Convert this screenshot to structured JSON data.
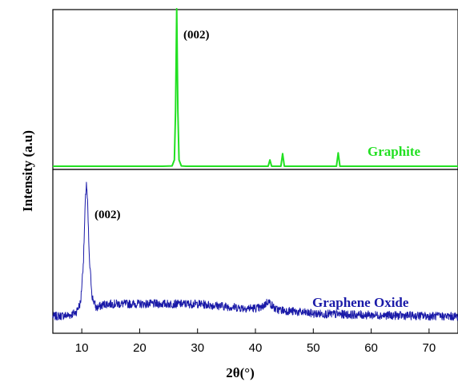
{
  "chart_data": [
    {
      "type": "line",
      "panel": "top",
      "series": [
        {
          "name": "Graphite",
          "color": "#22e022",
          "points": [
            [
              5,
              0
            ],
            [
              24,
              0
            ],
            [
              25.6,
              0.002
            ],
            [
              26.0,
              0.04
            ],
            [
              26.2,
              0.35
            ],
            [
              26.4,
              1.0
            ],
            [
              26.6,
              0.35
            ],
            [
              26.8,
              0.04
            ],
            [
              27.2,
              0.002
            ],
            [
              28,
              0
            ],
            [
              42.2,
              0
            ],
            [
              42.5,
              0.04
            ],
            [
              42.8,
              0
            ],
            [
              44.4,
              0
            ],
            [
              44.7,
              0.08
            ],
            [
              45.0,
              0
            ],
            [
              54.0,
              0
            ],
            [
              54.3,
              0.085
            ],
            [
              54.6,
              0
            ],
            [
              75,
              0
            ]
          ]
        }
      ],
      "annotations": [
        {
          "text": "(002)",
          "x": 26.4
        }
      ]
    },
    {
      "type": "line",
      "panel": "bottom",
      "series": [
        {
          "name": "Graphene Oxide",
          "color": "#1a1aa8",
          "points": [
            [
              5,
              0.04
            ],
            [
              8,
              0.05
            ],
            [
              9,
              0.07
            ],
            [
              9.8,
              0.14
            ],
            [
              10.3,
              0.45
            ],
            [
              10.6,
              0.85
            ],
            [
              10.8,
              1.0
            ],
            [
              11.0,
              0.85
            ],
            [
              11.3,
              0.45
            ],
            [
              11.8,
              0.18
            ],
            [
              12.5,
              0.1
            ],
            [
              14,
              0.13
            ],
            [
              20,
              0.13
            ],
            [
              30,
              0.13
            ],
            [
              38,
              0.1
            ],
            [
              41,
              0.1
            ],
            [
              42.2,
              0.15
            ],
            [
              43.5,
              0.09
            ],
            [
              50,
              0.06
            ],
            [
              60,
              0.05
            ],
            [
              75,
              0.04
            ]
          ]
        }
      ],
      "annotations": [
        {
          "text": "(002)",
          "x": 10.8
        }
      ]
    }
  ],
  "axes": {
    "xlabel": "2θ(°)",
    "ylabel": "Intensity (a.u)",
    "xlim": [
      5,
      75
    ],
    "xticks": [
      10,
      20,
      30,
      40,
      50,
      60,
      70
    ],
    "xtick_labels": [
      "10",
      "20",
      "30",
      "40",
      "50",
      "60",
      "70"
    ]
  },
  "labels": {
    "graphite": "Graphite",
    "graphene_oxide": "Graphene Oxide",
    "peak_top": "(002)",
    "peak_bottom": "(002)"
  }
}
